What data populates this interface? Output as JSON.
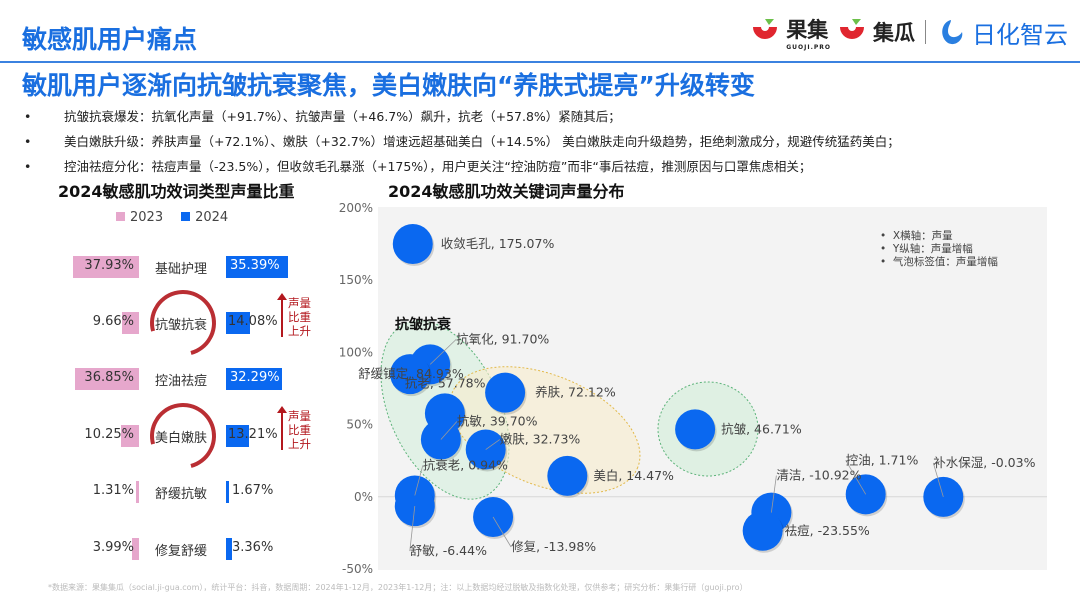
{
  "header": {
    "title": "敏感肌用户痛点",
    "logos": {
      "guoji": "果集",
      "guoji_sub": "GUOJI.PRO",
      "jigua": "集瓜",
      "rihua": "日化智云"
    }
  },
  "headline": "敏肌用户逐渐向抗皱抗衰聚焦，美白嫩肤向“养肤式提亮”升级转变",
  "bullets": [
    "抗皱抗衰爆发：抗氧化声量（+91.7%）、抗皱声量（+46.7%）飙升，抗老（+57.8%）紧随其后；",
    "美白嫩肤升级：养肤声量（+72.1%）、嫩肤（+32.7%）增速远超基础美白（+14.5%） 美白嫩肤走向升级趋势，拒绝刺激成分，规避传统猛药美白；",
    "控油祛痘分化：祛痘声量（-23.5%），但收敛毛孔暴涨（+175%），用户更关注“控油防痘”而非“事后祛痘，推测原因与口罩焦虑相关；"
  ],
  "chart_data": [
    {
      "type": "bar",
      "title": "2024敏感肌功效词类型声量比重",
      "categories": [
        "基础护理",
        "抗皱抗衰",
        "控油祛痘",
        "美白嫩肤",
        "舒缓抗敏",
        "修复舒缓"
      ],
      "series": [
        {
          "name": "2023",
          "color": "#e6a7cc",
          "values": [
            37.93,
            9.66,
            36.85,
            10.25,
            1.31,
            3.99
          ],
          "labels": [
            "37.93%",
            "9.66%",
            "36.85%",
            "10.25%",
            "1.31%",
            "3.99%"
          ]
        },
        {
          "name": "2024",
          "color": "#0a68f0",
          "values": [
            35.39,
            14.08,
            32.29,
            13.21,
            1.67,
            3.36
          ],
          "labels": [
            "35.39%",
            "14.08%",
            "32.29%",
            "13.21%",
            "1.67%",
            "3.36%"
          ]
        }
      ],
      "highlighted": [
        "抗皱抗衰",
        "美白嫩肤"
      ],
      "annotation": "声量比重上升"
    },
    {
      "type": "scatter",
      "title": "2024敏感肌功效关键词声量分布",
      "ylim": [
        -50,
        200
      ],
      "yticks": [
        "200%",
        "150%",
        "100%",
        "50%",
        "0%",
        "-50%"
      ],
      "ytick_values": [
        200,
        150,
        100,
        50,
        0,
        -50
      ],
      "xlim": [
        0,
        100
      ],
      "notes": [
        "X横轴：声量",
        "Y纵轴：声量增幅",
        "气泡标签值：声量增幅"
      ],
      "group_label": "抗皱抗衰",
      "point_color": "#0a68f0",
      "points": [
        {
          "name": "收敛毛孔",
          "x": 5.2,
          "y": 175.07,
          "label": "收敛毛孔, 175.07%"
        },
        {
          "name": "抗氧化",
          "x": 7.8,
          "y": 91.7,
          "label": "抗氧化, 91.70%"
        },
        {
          "name": "舒缓镇定",
          "x": 4.8,
          "y": 84.93,
          "label": "舒缓镇定, 84.93%"
        },
        {
          "name": "养肤",
          "x": 19.0,
          "y": 72.12,
          "label": "养肤, 72.12%"
        },
        {
          "name": "抗老",
          "x": 10.0,
          "y": 57.78,
          "label": "抗老, 57.78%"
        },
        {
          "name": "抗敏",
          "x": 9.4,
          "y": 39.7,
          "label": "抗敏, 39.70%"
        },
        {
          "name": "嫩肤",
          "x": 16.1,
          "y": 32.73,
          "label": "嫩肤, 32.73%"
        },
        {
          "name": "抗衰老",
          "x": 5.5,
          "y": 0.94,
          "label": "抗衰老, 0.94%"
        },
        {
          "name": "舒敏",
          "x": 5.5,
          "y": -6.44,
          "label": "舒敏, -6.44%"
        },
        {
          "name": "美白",
          "x": 28.3,
          "y": 14.47,
          "label": "美白, 14.47%"
        },
        {
          "name": "修复",
          "x": 17.2,
          "y": -13.98,
          "label": "修复, -13.98%"
        },
        {
          "name": "抗皱",
          "x": 47.4,
          "y": 46.71,
          "label": "抗皱, 46.71%"
        },
        {
          "name": "清洁",
          "x": 58.8,
          "y": -10.92,
          "label": "清洁, -10.92%"
        },
        {
          "name": "祛痘",
          "x": 57.5,
          "y": -23.55,
          "label": "祛痘, -23.55%"
        },
        {
          "name": "控油",
          "x": 72.9,
          "y": 1.71,
          "label": "控油, 1.71%"
        },
        {
          "name": "补水保湿",
          "x": 84.5,
          "y": -0.03,
          "label": "补水保湿, -0.03%"
        }
      ]
    }
  ],
  "footer": "*数据来源：果集集瓜（social.ji-gua.com），统计平台：抖音，数据周期：2024年1-12月，2023年1-12月；注：以上数据均经过脱敏及指数化处理，仅供参考；研究分析：果集行研（guoji.pro）"
}
